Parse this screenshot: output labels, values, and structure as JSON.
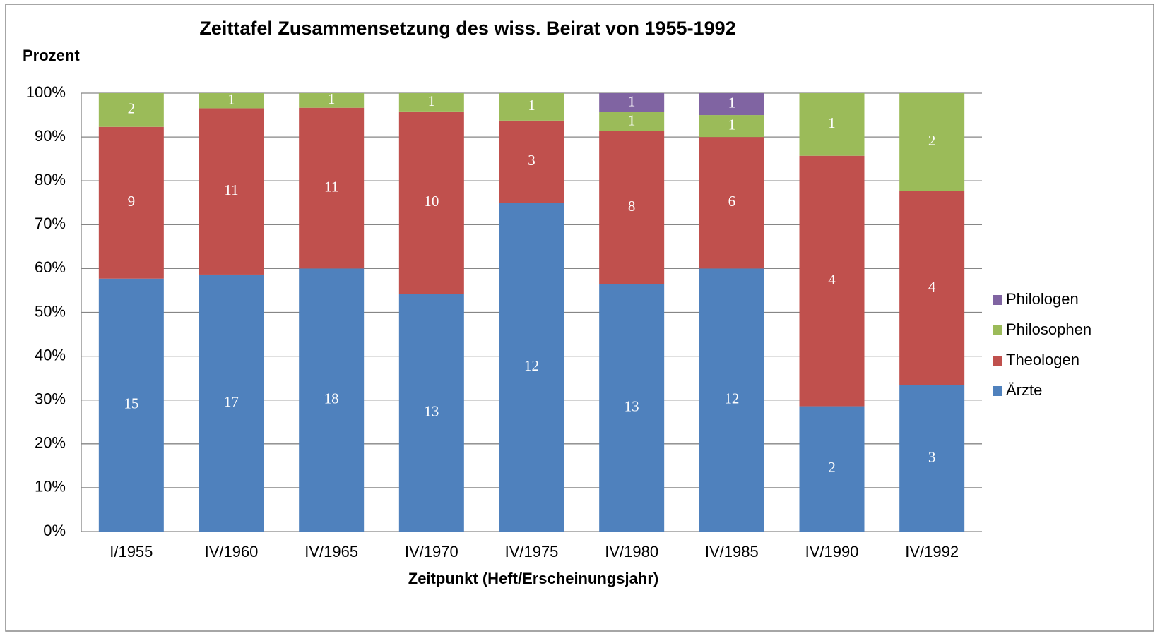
{
  "chart_data": {
    "type": "bar",
    "stacking": "percent",
    "title": "Zeittafel Zusammensetzung des wiss. Beirat von 1955-1992",
    "y_label": "Prozent",
    "x_label": "Zeitpunkt (Heft/Erscheinungsjahr)",
    "categories": [
      "I/1955",
      "IV/1960",
      "IV/1965",
      "IV/1970",
      "IV/1975",
      "IV/1980",
      "IV/1985",
      "IV/1990",
      "IV/1992"
    ],
    "series": [
      {
        "name": "Ärzte",
        "color": "#4f81bd",
        "values": [
          15,
          17,
          18,
          13,
          12,
          13,
          12,
          2,
          3
        ]
      },
      {
        "name": "Theologen",
        "color": "#c0504d",
        "values": [
          9,
          11,
          11,
          10,
          3,
          8,
          6,
          4,
          4
        ]
      },
      {
        "name": "Philosophen",
        "color": "#9bbb59",
        "values": [
          2,
          1,
          1,
          1,
          1,
          1,
          1,
          1,
          2
        ]
      },
      {
        "name": "Philologen",
        "color": "#8064a2",
        "values": [
          null,
          null,
          null,
          null,
          null,
          1,
          1,
          null,
          null
        ]
      }
    ],
    "ylim": [
      0,
      100
    ],
    "yticks": [
      {
        "value": 0,
        "label": "0%"
      },
      {
        "value": 10,
        "label": "10%"
      },
      {
        "value": 20,
        "label": "20%"
      },
      {
        "value": 30,
        "label": "30%"
      },
      {
        "value": 40,
        "label": "40%"
      },
      {
        "value": 50,
        "label": "50%"
      },
      {
        "value": 60,
        "label": "60%"
      },
      {
        "value": 70,
        "label": "70%"
      },
      {
        "value": 80,
        "label": "80%"
      },
      {
        "value": 90,
        "label": "90%"
      },
      {
        "value": 100,
        "label": "100%"
      }
    ],
    "grid": true,
    "legend": "right"
  }
}
